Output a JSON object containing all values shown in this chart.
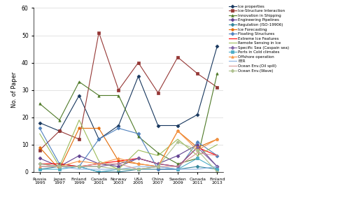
{
  "x_labels": [
    "Russia\n1995",
    "Japan\n1997",
    "Finland\n1999",
    "Canada\n2001",
    "Norway\n2003",
    "USA\n2005",
    "China\n2007",
    "Sweden\n2009",
    "Canada\n2011",
    "Finland\n2013"
  ],
  "series": [
    {
      "label": "Ice properties",
      "color": "#17375e",
      "marker": "D",
      "values": [
        18,
        15,
        28,
        12,
        17,
        35,
        17,
        17,
        21,
        46
      ]
    },
    {
      "label": "Ice-Structure Interaction",
      "color": "#953735",
      "marker": "s",
      "values": [
        8,
        15,
        12,
        51,
        30,
        40,
        29,
        42,
        36,
        31
      ]
    },
    {
      "label": "Innovation in Shipping",
      "color": "#4f7a28",
      "marker": "^",
      "values": [
        25,
        19,
        33,
        28,
        28,
        13,
        7,
        3,
        5,
        36
      ]
    },
    {
      "label": "Engineering Pipelines",
      "color": "#604090",
      "marker": "D",
      "values": [
        5,
        2,
        6,
        3,
        2,
        5,
        3,
        6,
        10,
        2
      ]
    },
    {
      "label": "Regulation (ISO-19906)",
      "color": "#31849b",
      "marker": "D",
      "values": [
        1,
        2,
        2,
        0,
        0,
        1,
        1,
        1,
        2,
        1
      ]
    },
    {
      "label": "Ice Forecasting",
      "color": "#e36c09",
      "marker": "o",
      "values": [
        9,
        1,
        16,
        16,
        4,
        3,
        2,
        15,
        9,
        12
      ]
    },
    {
      "label": "Floating Structures",
      "color": "#4f81bd",
      "marker": "D",
      "values": [
        16,
        3,
        2,
        12,
        16,
        14,
        1,
        1,
        11,
        6
      ]
    },
    {
      "label": "Extreme Ice Features",
      "color": "#ff0000",
      "marker": null,
      "values": [
        3,
        3,
        2,
        3,
        4,
        5,
        3,
        2,
        9,
        6
      ]
    },
    {
      "label": "Remote Sensing in Ice",
      "color": "#9bbb59",
      "marker": null,
      "values": [
        14,
        2,
        19,
        4,
        1,
        8,
        6,
        12,
        6,
        10
      ]
    },
    {
      "label": "Specific Sea (Caspain sea)",
      "color": "#8064a2",
      "marker": "D",
      "values": [
        3,
        2,
        2,
        2,
        3,
        5,
        3,
        2,
        9,
        2
      ]
    },
    {
      "label": "Ports in Cold climates",
      "color": "#4bacc6",
      "marker": "s",
      "values": [
        1,
        1,
        2,
        0,
        1,
        1,
        2,
        1,
        5,
        1
      ]
    },
    {
      "label": "Offshore operation",
      "color": "#f79646",
      "marker": "^",
      "values": [
        2,
        2,
        4,
        3,
        5,
        3,
        2,
        15,
        8,
        12
      ]
    },
    {
      "label": "EER",
      "color": "#8db4e3",
      "marker": null,
      "values": [
        2,
        2,
        1,
        1,
        1,
        2,
        2,
        1,
        1,
        2
      ]
    },
    {
      "label": "Ocean Env.(Oil spill)",
      "color": "#d99694",
      "marker": null,
      "values": [
        2,
        2,
        2,
        3,
        3,
        1,
        2,
        2,
        7,
        6
      ]
    },
    {
      "label": "Ocean Env.(Wave)",
      "color": "#aec18f",
      "marker": "D",
      "values": [
        3,
        2,
        2,
        2,
        1,
        1,
        2,
        11,
        8,
        0
      ]
    }
  ],
  "ylim": [
    0,
    60
  ],
  "yticks": [
    0,
    10,
    20,
    30,
    40,
    50,
    60
  ],
  "ylabel": "No. of Paper",
  "grid_color": "#d8d8d8"
}
